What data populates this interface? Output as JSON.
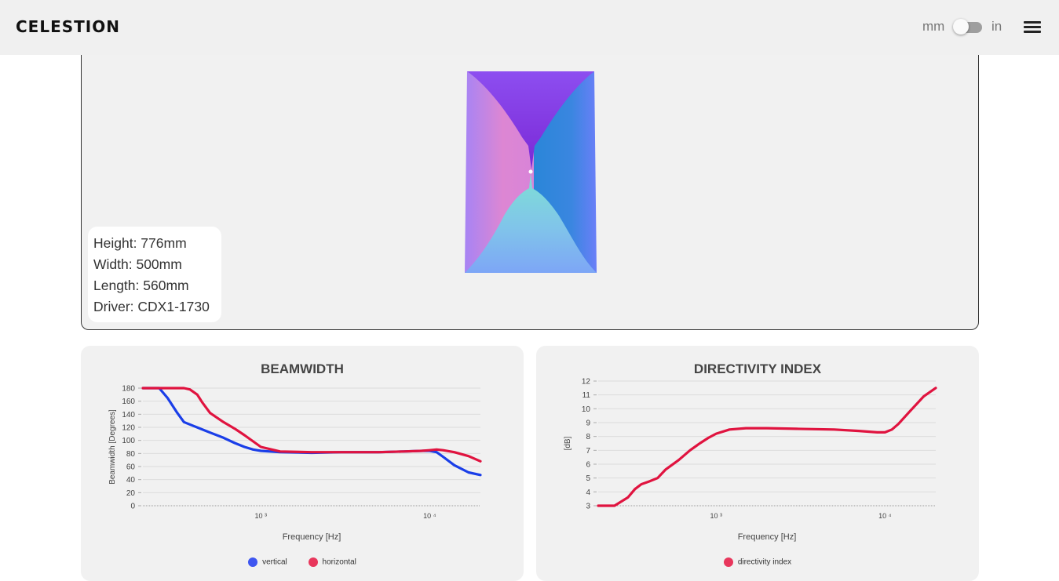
{
  "header": {
    "logo": "CELESTION",
    "unit_left": "mm",
    "unit_right": "in",
    "unit_toggle_state": "mm"
  },
  "dimensions": {
    "height": "Height: 776mm",
    "width": "Width: 500mm",
    "length": "Length: 560mm",
    "driver": "Driver: CDX1-1730"
  },
  "beamwidth": {
    "title": "BEAMWIDTH",
    "xlabel": "Frequency [Hz]",
    "ylabel": "Beamwidth [Degrees]",
    "ytick_labels": [
      "0",
      "20",
      "40",
      "60",
      "80",
      "100",
      "120",
      "140",
      "160",
      "180"
    ],
    "xtick_labels": [
      "10 ³",
      "10 ⁴"
    ],
    "legend": [
      "vertical",
      "horizontal"
    ]
  },
  "directivity": {
    "title": "DIRECTIVITY INDEX",
    "xlabel": "Frequency [Hz]",
    "ylabel": "[dB]",
    "ytick_labels": [
      "3",
      "4",
      "5",
      "6",
      "7",
      "8",
      "9",
      "10",
      "11",
      "12"
    ],
    "xtick_labels": [
      "10 ³",
      "10 ⁴"
    ],
    "legend": [
      "directivity index"
    ]
  },
  "colors": {
    "vertical": "#1a3ee8",
    "horizontal": "#e0133f",
    "legend_vertical": "#3e56f0",
    "legend_horizontal": "#e8375c"
  },
  "chart_data": [
    {
      "type": "line",
      "title": "BEAMWIDTH",
      "xlabel": "Frequency [Hz]",
      "ylabel": "Beamwidth [Degrees]",
      "xscale": "log",
      "xlim": [
        200,
        20000
      ],
      "ylim": [
        0,
        180
      ],
      "grid": true,
      "legend_position": "bottom",
      "series": [
        {
          "name": "vertical",
          "x": [
            200,
            250,
            280,
            320,
            350,
            400,
            500,
            600,
            700,
            800,
            900,
            1000,
            1300,
            2000,
            3000,
            5000,
            7000,
            9000,
            10000,
            11000,
            12000,
            14000,
            17000,
            20000
          ],
          "y": [
            180,
            180,
            165,
            142,
            128,
            122,
            112,
            104,
            96,
            90,
            86,
            84,
            82,
            81,
            82,
            82,
            83,
            84,
            84,
            82,
            75,
            62,
            51,
            47
          ]
        },
        {
          "name": "horizontal",
          "x": [
            200,
            250,
            300,
            350,
            380,
            420,
            450,
            500,
            600,
            700,
            800,
            1000,
            1300,
            2000,
            3000,
            5000,
            7000,
            9000,
            10000,
            11000,
            12000,
            14000,
            17000,
            20000
          ],
          "y": [
            180,
            180,
            180,
            180,
            178,
            170,
            158,
            142,
            128,
            118,
            108,
            90,
            83,
            82,
            82,
            82,
            83,
            84,
            85,
            86,
            85,
            82,
            76,
            68
          ]
        }
      ]
    },
    {
      "type": "line",
      "title": "DIRECTIVITY INDEX",
      "xlabel": "Frequency [Hz]",
      "ylabel": "[dB]",
      "xscale": "log",
      "xlim": [
        200,
        20000
      ],
      "ylim": [
        3,
        12
      ],
      "grid": true,
      "legend_position": "bottom",
      "series": [
        {
          "name": "directivity index",
          "x": [
            200,
            250,
            300,
            330,
            360,
            400,
            450,
            500,
            600,
            700,
            800,
            900,
            1000,
            1200,
            1500,
            2000,
            3000,
            5000,
            7000,
            9000,
            10000,
            11000,
            12000,
            14000,
            17000,
            20000
          ],
          "y": [
            3.0,
            3.0,
            3.6,
            4.2,
            4.55,
            4.75,
            5.0,
            5.6,
            6.3,
            7.0,
            7.5,
            7.9,
            8.2,
            8.5,
            8.6,
            8.6,
            8.55,
            8.5,
            8.4,
            8.3,
            8.3,
            8.5,
            8.9,
            9.8,
            10.9,
            11.5
          ]
        }
      ]
    }
  ]
}
